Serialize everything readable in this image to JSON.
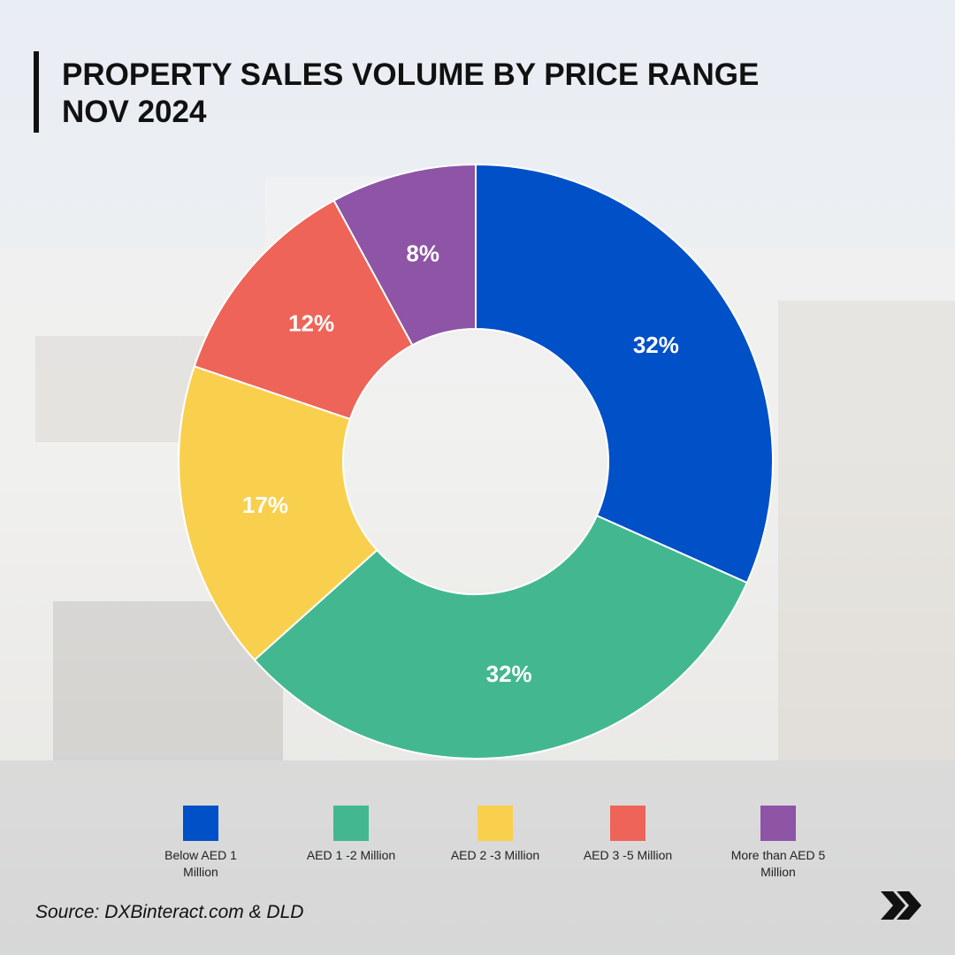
{
  "chart_data": {
    "type": "donut",
    "title": "PROPERTY SALES VOLUME BY PRICE RANGE",
    "subtitle": "NOV 2024",
    "categories": [
      "Below AED 1 Million",
      "AED 1 -2 Million",
      "AED 2 -3 Million",
      "AED 3 -5 Million",
      "More than AED 5 Million"
    ],
    "values": [
      32,
      32,
      17,
      12,
      8
    ],
    "value_labels": [
      "32%",
      "32%",
      "17%",
      "12%",
      "8%"
    ],
    "colors": [
      "#0050c8",
      "#43b890",
      "#f9d04e",
      "#ee6458",
      "#8e54a6"
    ],
    "source": "Source: DXBinteract.com & DLD"
  }
}
